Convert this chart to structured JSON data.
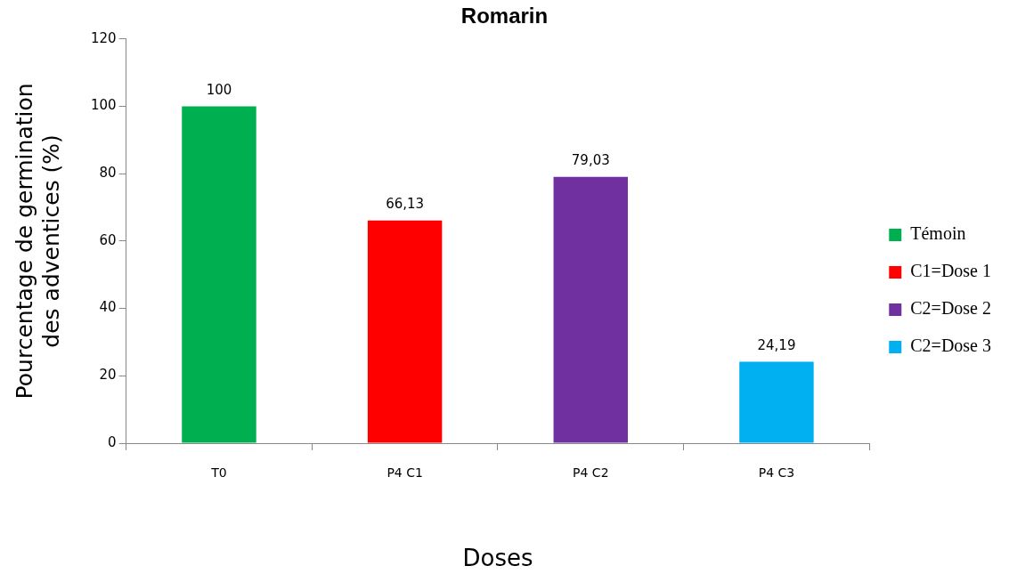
{
  "chart_data": {
    "type": "bar",
    "title": "Romarin",
    "xlabel": "Doses",
    "ylabel": "Pourcentage de germination\ndes adventices (%)",
    "categories": [
      "T0",
      "P4 C1",
      "P4 C2",
      "P4 C3"
    ],
    "series": [
      {
        "name": "Témoin",
        "color": "#00b050",
        "values": [
          100,
          null,
          null,
          null
        ],
        "value_labels": [
          "100",
          null,
          null,
          null
        ]
      },
      {
        "name": "C1=Dose 1",
        "color": "#ff0000",
        "values": [
          null,
          66.13,
          null,
          null
        ],
        "value_labels": [
          null,
          "66,13",
          null,
          null
        ]
      },
      {
        "name": "C2=Dose 2",
        "color": "#7030a0",
        "values": [
          null,
          null,
          79.03,
          null
        ],
        "value_labels": [
          null,
          null,
          "79,03",
          null
        ]
      },
      {
        "name": "C2=Dose 3",
        "color": "#00b0f0",
        "values": [
          null,
          null,
          null,
          24.19
        ],
        "value_labels": [
          null,
          null,
          null,
          "24,19"
        ]
      }
    ],
    "ylim": [
      0,
      120
    ],
    "yticks": [
      0,
      20,
      40,
      60,
      80,
      100,
      120
    ],
    "grid": false,
    "legend": "right"
  }
}
